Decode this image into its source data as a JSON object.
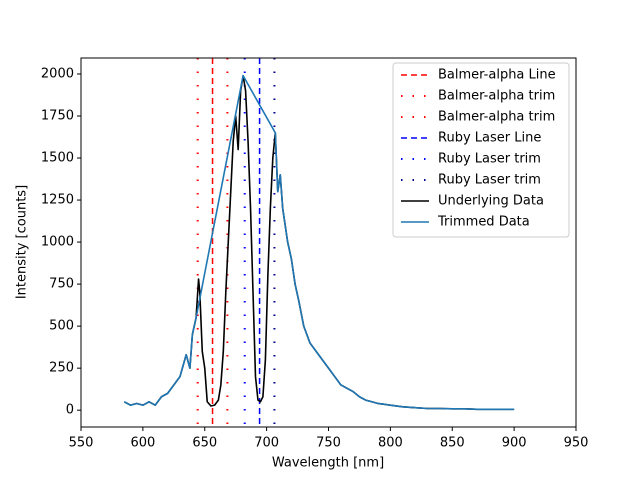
{
  "chart_data": {
    "type": "line",
    "xlabel": "Wavelength [nm]",
    "ylabel": "Intensity [counts]",
    "xlim": [
      550,
      950
    ],
    "ylim": [
      -100,
      2095
    ],
    "xticks": [
      550,
      600,
      650,
      700,
      750,
      800,
      850,
      900,
      950
    ],
    "yticks": [
      0,
      250,
      500,
      750,
      1000,
      1250,
      1500,
      1750,
      2000
    ],
    "legend": "upper right",
    "vlines": [
      {
        "name": "Balmer-alpha Line",
        "x": 656.3,
        "color": "#ff0000",
        "style": "dashed"
      },
      {
        "name": "Balmer-alpha trim",
        "x": 644.3,
        "color": "#ff0000",
        "style": "dotted"
      },
      {
        "name": "Balmer-alpha trim",
        "x": 668.3,
        "color": "#ff0000",
        "style": "dotted"
      },
      {
        "name": "Ruby Laser Line",
        "x": 694.3,
        "color": "#0000ff",
        "style": "dashed"
      },
      {
        "name": "Ruby Laser trim",
        "x": 682.3,
        "color": "#0000ff",
        "style": "dotted"
      },
      {
        "name": "Ruby Laser trim",
        "x": 706.3,
        "color": "#00008b",
        "style": "dotted"
      }
    ],
    "series": [
      {
        "name": "Underlying Data",
        "color": "#000000",
        "x": [
          585,
          590,
          595,
          600,
          605,
          610,
          615,
          620,
          625,
          630,
          635,
          638,
          640,
          643,
          645,
          646,
          648,
          650,
          652,
          655,
          658,
          661,
          663,
          665,
          667,
          669,
          671,
          673,
          675,
          677,
          679,
          681,
          683,
          685,
          687,
          689,
          691,
          693,
          695,
          697,
          699,
          701,
          703,
          705,
          707,
          709,
          711,
          713,
          715,
          717,
          720,
          723,
          726,
          730,
          735,
          740,
          745,
          750,
          755,
          760,
          765,
          770,
          775,
          780,
          785,
          790,
          800,
          810,
          820,
          830,
          840,
          850,
          860,
          870,
          880,
          890,
          900
        ],
        "values": [
          50,
          30,
          40,
          30,
          50,
          30,
          80,
          100,
          150,
          200,
          330,
          250,
          450,
          550,
          780,
          700,
          350,
          250,
          50,
          25,
          30,
          60,
          150,
          350,
          700,
          1000,
          1300,
          1600,
          1750,
          1550,
          1900,
          1990,
          1900,
          1600,
          1200,
          700,
          200,
          60,
          50,
          80,
          300,
          800,
          1200,
          1500,
          1650,
          1300,
          1400,
          1200,
          1100,
          1000,
          900,
          750,
          650,
          500,
          400,
          350,
          300,
          250,
          200,
          150,
          130,
          110,
          80,
          60,
          50,
          40,
          30,
          20,
          15,
          10,
          10,
          8,
          8,
          5,
          5,
          5,
          5
        ]
      },
      {
        "name": "Trimmed Data",
        "color": "#1f77b4",
        "x": [
          585,
          590,
          595,
          600,
          605,
          610,
          615,
          620,
          625,
          630,
          635,
          638,
          640,
          643,
          681,
          707,
          709,
          711,
          713,
          715,
          717,
          720,
          723,
          726,
          730,
          735,
          740,
          745,
          750,
          755,
          760,
          765,
          770,
          775,
          780,
          785,
          790,
          800,
          810,
          820,
          830,
          840,
          850,
          860,
          870,
          880,
          890,
          900
        ],
        "values": [
          50,
          30,
          40,
          30,
          50,
          30,
          80,
          100,
          150,
          200,
          330,
          250,
          450,
          550,
          1990,
          1650,
          1300,
          1400,
          1200,
          1100,
          1000,
          900,
          750,
          650,
          500,
          400,
          350,
          300,
          250,
          200,
          150,
          130,
          110,
          80,
          60,
          50,
          40,
          30,
          20,
          15,
          10,
          10,
          8,
          8,
          5,
          5,
          5,
          5
        ]
      }
    ]
  }
}
